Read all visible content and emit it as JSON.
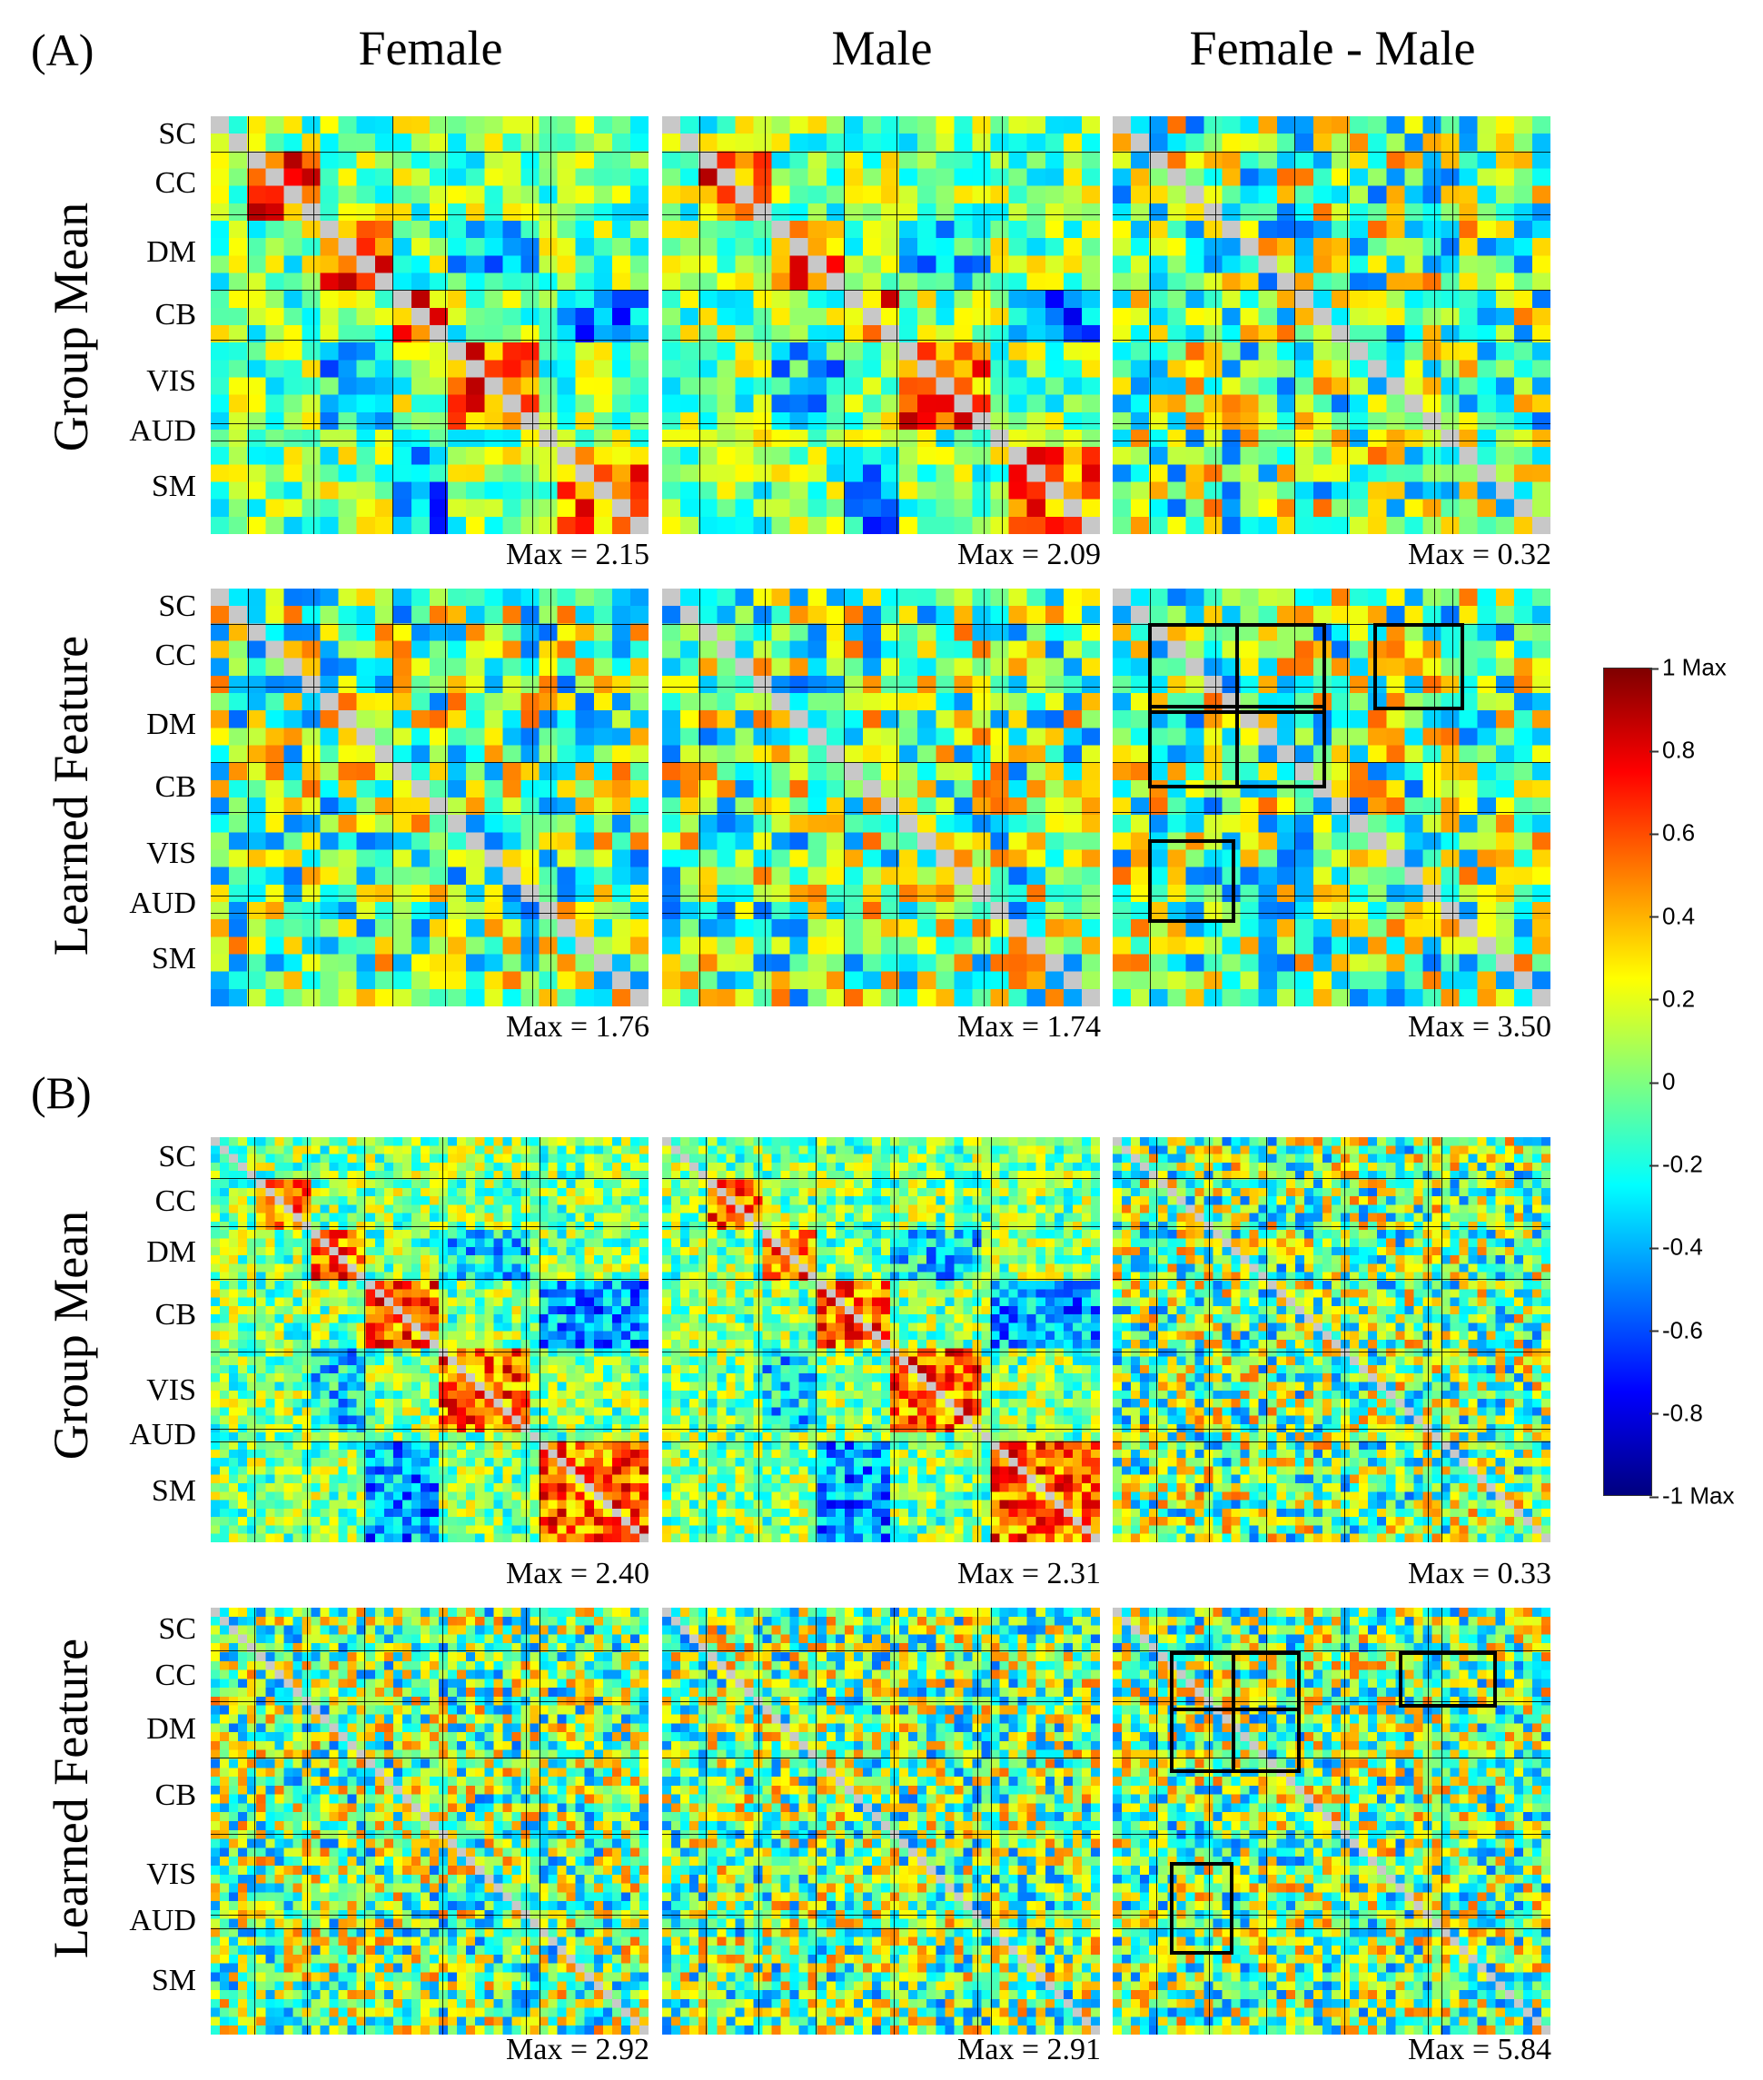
{
  "figure": {
    "column_titles": [
      "Female",
      "Male",
      "Female - Male"
    ],
    "panels": [
      {
        "tag": "(A)",
        "rows": [
          {
            "title": "Group Mean",
            "max_labels": [
              "Max = 2.15",
              "Max = 2.09",
              "Max = 0.32"
            ]
          },
          {
            "title": "Learned Feature",
            "max_labels": [
              "Max = 1.76",
              "Max = 1.74",
              "Max = 3.50"
            ]
          }
        ]
      },
      {
        "tag": "(B)",
        "rows": [
          {
            "title": "Group Mean",
            "max_labels": [
              "Max = 2.40",
              "Max = 2.31",
              "Max = 0.33"
            ]
          },
          {
            "title": "Learned Feature",
            "max_labels": [
              "Max = 2.92",
              "Max = 2.91",
              "Max = 5.84"
            ]
          }
        ]
      }
    ],
    "network_labels": [
      "SC",
      "CC",
      "DM",
      "CB",
      "VIS",
      "AUD",
      "SM"
    ],
    "colorbar": {
      "colormap": "jet",
      "ticks": [
        "1 Max",
        "0.8",
        "0.6",
        "0.4",
        "0.2",
        "0",
        "-0.2",
        "-0.4",
        "-0.6",
        "-0.8",
        "-1 Max"
      ]
    },
    "highlight_color": "#000000"
  }
}
